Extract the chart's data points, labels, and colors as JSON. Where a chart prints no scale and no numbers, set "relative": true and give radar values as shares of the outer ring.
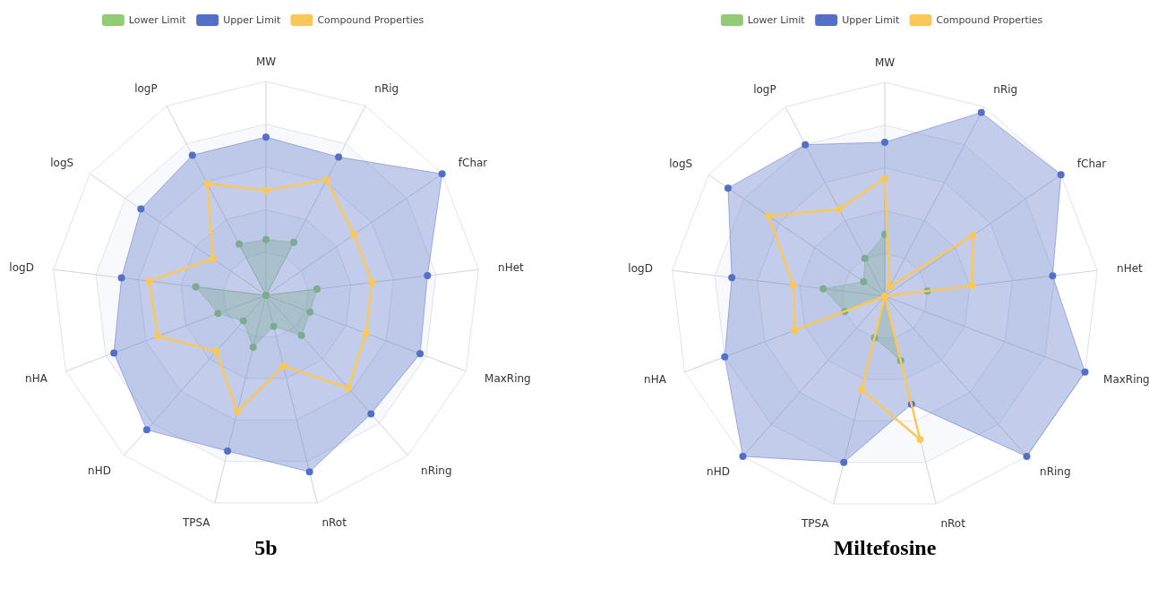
{
  "chart_data": [
    {
      "type": "radar",
      "title": "5b",
      "relative": true,
      "grid": true,
      "legend": "top",
      "marker": "circle",
      "categories": [
        "MW",
        "nRig",
        "fChar",
        "nHet",
        "MaxRing",
        "nRing",
        "nRot",
        "TPSA",
        "nHD",
        "nHA",
        "logD",
        "logS",
        "logP"
      ],
      "series": [
        {
          "name": "Lower Limit",
          "color": "#91cc75",
          "values": [
            0.26,
            0.28,
            0,
            0.24,
            0.22,
            0.25,
            0.15,
            0.25,
            0.16,
            0.24,
            0.33,
            0,
            0.27
          ]
        },
        {
          "name": "Upper Limit",
          "color": "#5470c6",
          "values": [
            0.74,
            0.73,
            1.0,
            0.76,
            0.77,
            0.74,
            0.85,
            0.75,
            0.84,
            0.76,
            0.68,
            0.71,
            0.74
          ]
        },
        {
          "name": "Compound Properties",
          "color": "#fac858",
          "values": [
            0.49,
            0.61,
            0.5,
            0.5,
            0.5,
            0.58,
            0.34,
            0.56,
            0.35,
            0.54,
            0.55,
            0.3,
            0.59
          ]
        }
      ]
    },
    {
      "type": "radar",
      "title": "Miltefosine",
      "relative": true,
      "grid": true,
      "legend": "top",
      "marker": "circle",
      "categories": [
        "MW",
        "nRig",
        "fChar",
        "nHet",
        "MaxRing",
        "nRing",
        "nRot",
        "TPSA",
        "nHD",
        "nHA",
        "logD",
        "logS",
        "logP"
      ],
      "series": [
        {
          "name": "Lower Limit",
          "color": "#91cc75",
          "values": [
            0.29,
            0,
            0,
            0.2,
            0,
            0,
            0.31,
            0.2,
            0,
            0.2,
            0.29,
            0.12,
            0.2
          ]
        },
        {
          "name": "Upper Limit",
          "color": "#5470c6",
          "values": [
            0.72,
            0.97,
            1.0,
            0.79,
            1.0,
            1.0,
            0.52,
            0.8,
            1.0,
            0.8,
            0.72,
            0.89,
            0.8
          ]
        },
        {
          "name": "Compound Properties",
          "color": "#fac858",
          "values": [
            0.55,
            0.05,
            0.5,
            0.41,
            0,
            0,
            0.69,
            0.45,
            0,
            0.45,
            0.43,
            0.66,
            0.46
          ]
        }
      ]
    }
  ]
}
